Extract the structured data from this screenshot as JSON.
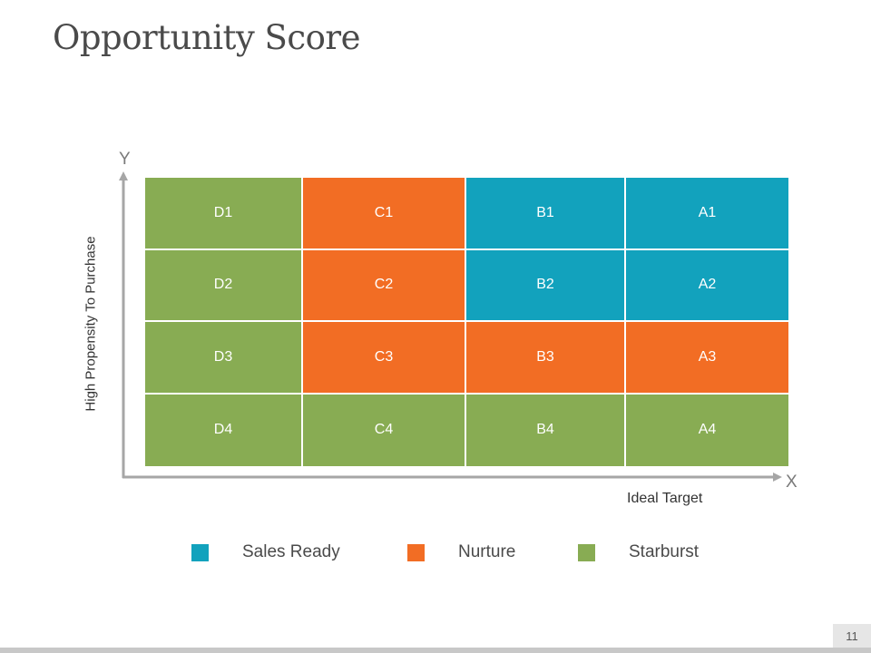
{
  "title": "Opportunity Score",
  "axes": {
    "y_letter": "Y",
    "x_letter": "X",
    "y_label": "High Propensity To Purchase",
    "x_label": "Ideal Target"
  },
  "colors": {
    "sales_ready": "#12a2bd",
    "nurture": "#f26d24",
    "starburst": "#88ac53",
    "axis": "#a6a6a6"
  },
  "grid": [
    [
      {
        "label": "D1",
        "category": "starburst"
      },
      {
        "label": "C1",
        "category": "nurture"
      },
      {
        "label": "B1",
        "category": "sales_ready"
      },
      {
        "label": "A1",
        "category": "sales_ready"
      }
    ],
    [
      {
        "label": "D2",
        "category": "starburst"
      },
      {
        "label": "C2",
        "category": "nurture"
      },
      {
        "label": "B2",
        "category": "sales_ready"
      },
      {
        "label": "A2",
        "category": "sales_ready"
      }
    ],
    [
      {
        "label": "D3",
        "category": "starburst"
      },
      {
        "label": "C3",
        "category": "nurture"
      },
      {
        "label": "B3",
        "category": "nurture"
      },
      {
        "label": "A3",
        "category": "nurture"
      }
    ],
    [
      {
        "label": "D4",
        "category": "starburst"
      },
      {
        "label": "C4",
        "category": "starburst"
      },
      {
        "label": "B4",
        "category": "starburst"
      },
      {
        "label": "A4",
        "category": "starburst"
      }
    ]
  ],
  "legend": [
    {
      "label": "Sales Ready",
      "category": "sales_ready"
    },
    {
      "label": "Nurture",
      "category": "nurture"
    },
    {
      "label": "Starburst",
      "category": "starburst"
    }
  ],
  "page_number": "11"
}
